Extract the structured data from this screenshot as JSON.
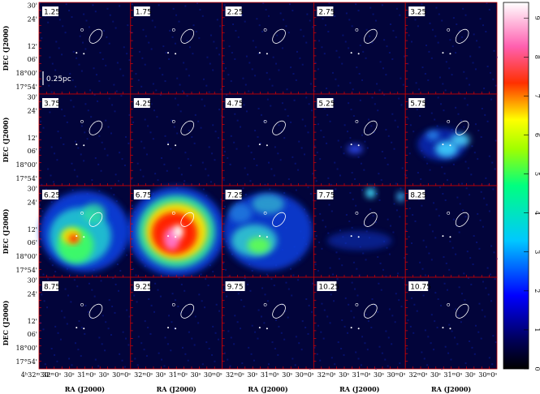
{
  "chart_data": {
    "type": "channel_map",
    "panels": [
      "1.25",
      "1.75",
      "2.25",
      "2.75",
      "3.25",
      "3.75",
      "4.25",
      "4.75",
      "5.25",
      "5.75",
      "6.25",
      "6.75",
      "7.25",
      "7.75",
      "8.25",
      "8.75",
      "9.25",
      "9.75",
      "10.25",
      "10.75"
    ],
    "ylabel": "DEC (J2000)",
    "xlabel": "RA (J2000)",
    "ytick_labels": [
      "30'",
      "24'",
      "12'",
      "06'",
      "18°00'",
      "17°54'"
    ],
    "xtick_first": "4ʰ32ᵐ30ˢ",
    "xtick_labels": [
      "32ᵐ0ˢ",
      "30ˢ",
      "31ᵐ0ˢ",
      "30ˢ",
      "30ᵐ0ˢ"
    ],
    "scale_bar": "0.25pc",
    "colorbar": {
      "lim": [
        0,
        9.4
      ],
      "ticks": [
        0,
        1,
        2,
        3,
        4,
        5,
        6,
        7,
        8,
        9
      ]
    }
  }
}
